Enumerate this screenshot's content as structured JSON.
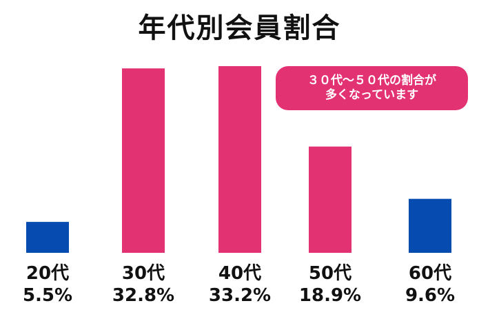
{
  "chart_data": {
    "type": "bar",
    "title": "年代別会員割合",
    "categories": [
      "20代",
      "30代",
      "40代",
      "50代",
      "60代"
    ],
    "values": [
      5.5,
      32.8,
      33.2,
      18.9,
      9.6
    ],
    "value_labels": [
      "5.5%",
      "32.8%",
      "33.2%",
      "18.9%",
      "9.6%"
    ],
    "bar_colors": [
      "#064baf",
      "#e23272",
      "#e23272",
      "#e23272",
      "#064baf"
    ],
    "annotation": [
      "３０代〜５０代の割合が",
      "多くなっています"
    ],
    "xlabel": "",
    "ylabel": "",
    "grid": false,
    "legend": "none"
  }
}
